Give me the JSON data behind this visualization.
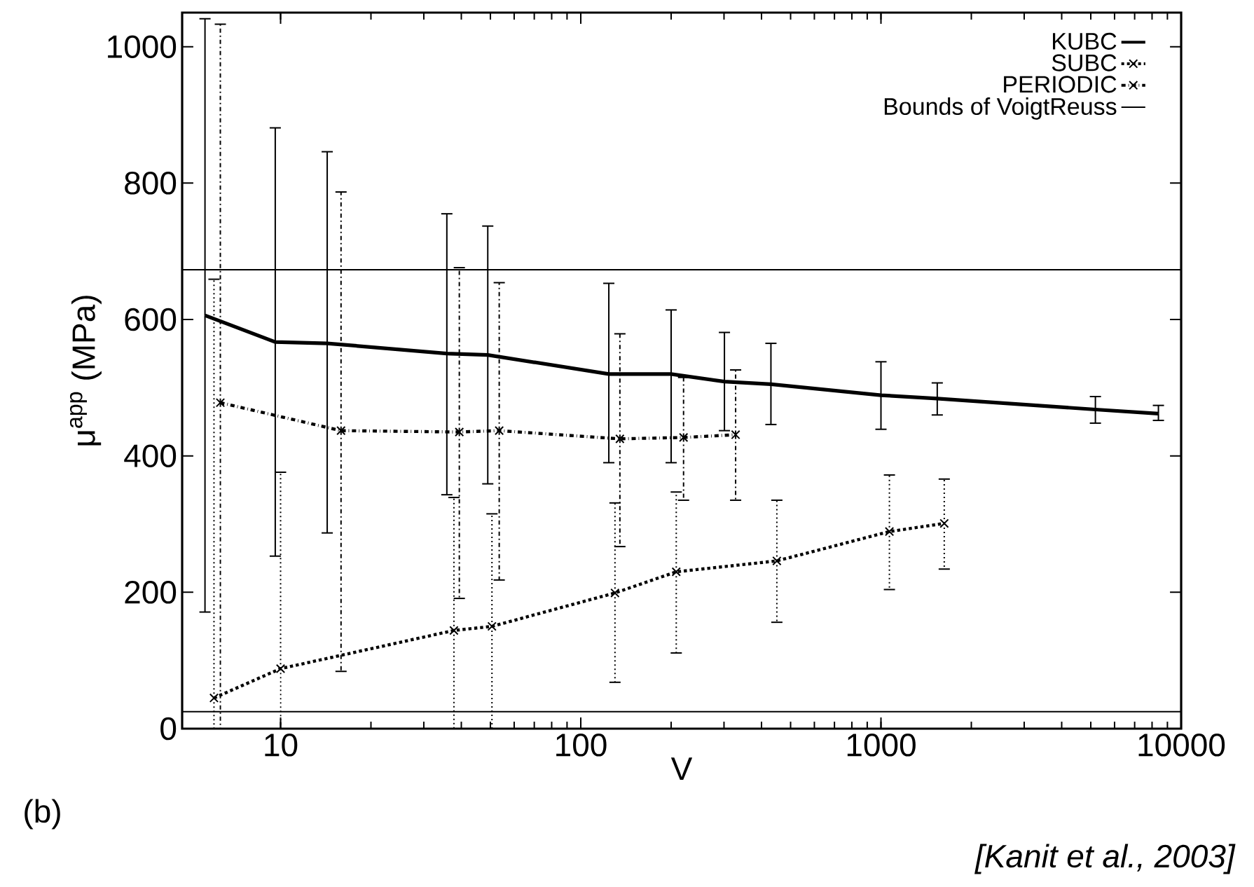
{
  "chart_data": {
    "type": "line",
    "xlabel": "V",
    "ylabel": "μ$^{app}$ (MPa)",
    "log": "x",
    "xlim": [
      4.7,
      10000
    ],
    "ylim": [
      0,
      1050
    ],
    "xticks": [
      10,
      100,
      1000,
      10000
    ],
    "yticks": [
      0,
      200,
      400,
      600,
      800,
      1000
    ],
    "grid": false,
    "legend": "top right",
    "series": [
      {
        "name": "KUBC",
        "color": "#000000",
        "line_style": "solid",
        "marker": "none",
        "x": [
          5.6,
          9.6,
          14.3,
          35.8,
          49,
          124,
          200,
          301,
          430,
          1000,
          1540,
          5180,
          8400
        ],
        "values": [
          606,
          567,
          565,
          550,
          548,
          520,
          520,
          509,
          505,
          489,
          484,
          468,
          462
        ],
        "errors": [
          [
            171,
            1041
          ],
          [
            253,
            881
          ],
          [
            287,
            846
          ],
          [
            343,
            755
          ],
          [
            359,
            737
          ],
          [
            390,
            653
          ],
          [
            390,
            614
          ],
          [
            437,
            581
          ],
          [
            446,
            565
          ],
          [
            439,
            538
          ],
          [
            460,
            507
          ],
          [
            448,
            487
          ],
          [
            452,
            474
          ]
        ]
      },
      {
        "name": "SUBC",
        "color": "#000000",
        "line_style": "dotted",
        "marker": "cross",
        "x": [
          6.0,
          10,
          37.8,
          50.6,
          130,
          208,
          450,
          1067,
          1625
        ],
        "values": [
          45,
          88,
          144,
          150,
          199,
          230,
          246,
          289,
          301
        ],
        "errors": [
          [
            0,
            659
          ],
          [
            0,
            376
          ],
          [
            0,
            339
          ],
          [
            0,
            315
          ],
          [
            68,
            331
          ],
          [
            111,
            347
          ],
          [
            156,
            335
          ],
          [
            204,
            372
          ],
          [
            234,
            366
          ]
        ]
      },
      {
        "name": "PERIODIC",
        "color": "#000000",
        "line_style": "dashdot",
        "marker": "cross",
        "x": [
          6.3,
          15.9,
          39.4,
          53.5,
          135,
          220,
          328
        ],
        "values": [
          478,
          437,
          435,
          437,
          425,
          427,
          431
        ],
        "errors": [
          [
            0,
            1033
          ],
          [
            84,
            787
          ],
          [
            191,
            676
          ],
          [
            218,
            654
          ],
          [
            267,
            579
          ],
          [
            335,
            515
          ],
          [
            335,
            526
          ]
        ]
      }
    ],
    "ref_lines": [
      {
        "axis": "y",
        "value": 673,
        "label": "Bounds of VoigtReuss",
        "color": "#000000"
      },
      {
        "axis": "y",
        "value": 25,
        "color": "#000000"
      }
    ],
    "annotations": [
      "(b)",
      "*[Kanit et al., 2003]*"
    ]
  }
}
